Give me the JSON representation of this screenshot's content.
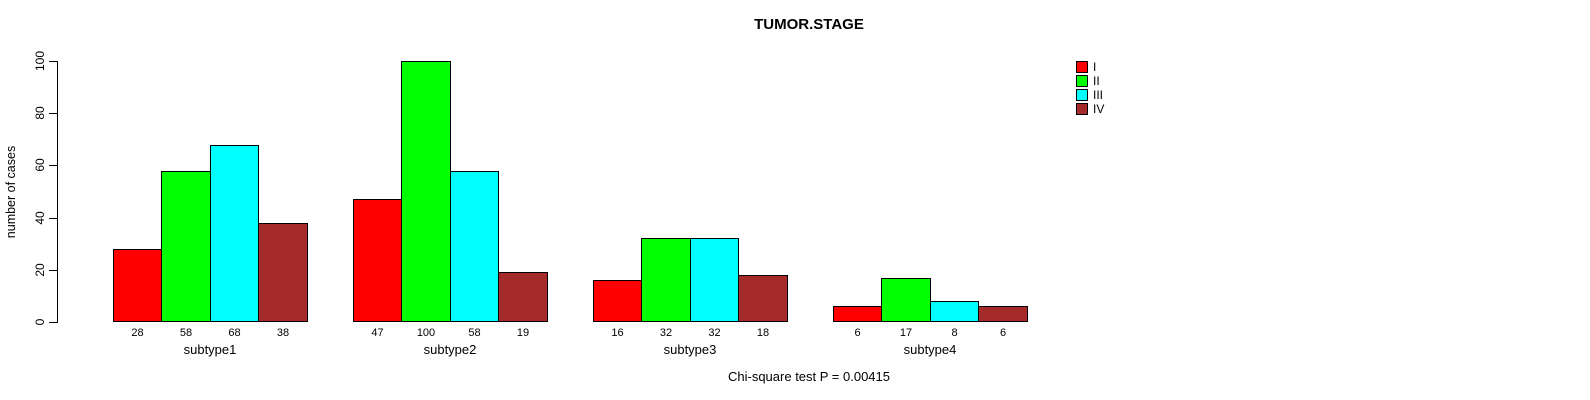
{
  "title": "TUMOR.STAGE",
  "footer": "Chi-square test P = 0.00415",
  "y_axis": {
    "label": "number of cases",
    "ticks": [
      0,
      20,
      40,
      60,
      80,
      100
    ]
  },
  "legend": {
    "entries": [
      {
        "label": "I",
        "color": "#FF0000"
      },
      {
        "label": "II",
        "color": "#00FF00"
      },
      {
        "label": "III",
        "color": "#00FFFF"
      },
      {
        "label": "IV",
        "color": "#A52A2A"
      }
    ]
  },
  "chart_data": {
    "type": "bar",
    "title": "TUMOR.STAGE",
    "xlabel": "",
    "ylabel": "number of cases",
    "ylim": [
      0,
      100
    ],
    "grid": false,
    "legend_position": "top-right",
    "bar_value_labels": true,
    "categories": [
      "subtype1",
      "subtype2",
      "subtype3",
      "subtype4"
    ],
    "series": [
      {
        "name": "I",
        "color": "#FF0000",
        "values": [
          28,
          47,
          16,
          6
        ]
      },
      {
        "name": "II",
        "color": "#00FF00",
        "values": [
          58,
          100,
          32,
          17
        ]
      },
      {
        "name": "III",
        "color": "#00FFFF",
        "values": [
          68,
          58,
          32,
          8
        ]
      },
      {
        "name": "IV",
        "color": "#A52A2A",
        "values": [
          38,
          19,
          18,
          6
        ]
      }
    ],
    "annotation": "Chi-square test P = 0.00415"
  }
}
